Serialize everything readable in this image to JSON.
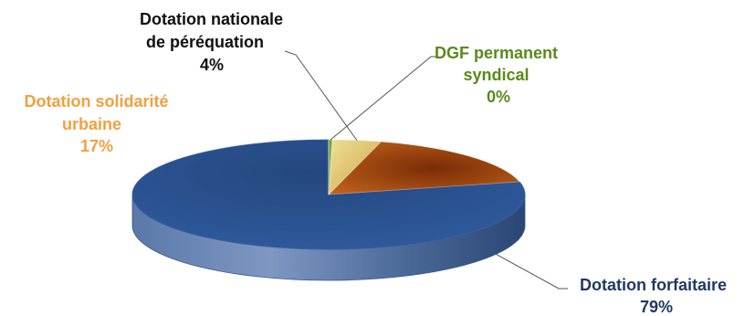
{
  "chart_data": {
    "type": "pie",
    "style": "3d",
    "slices": [
      {
        "key": "forfaitaire",
        "label_lines": [
          "Dotation forfaitaire"
        ],
        "pct_label": "79%",
        "value": 79,
        "color": "#2b4e8c",
        "text_color": "#1f3864"
      },
      {
        "key": "dsu",
        "label_lines": [
          "Dotation solidarité",
          "urbaine"
        ],
        "pct_label": "17%",
        "value": 17,
        "color": "#a24a10",
        "text_color": "#f0a040"
      },
      {
        "key": "dnp",
        "label_lines": [
          "Dotation nationale",
          "de péréquation"
        ],
        "pct_label": "4%",
        "value": 4,
        "color": "#e0c060",
        "text_color": "#111111"
      },
      {
        "key": "dgf",
        "label_lines": [
          "DGF permanent",
          "syndical"
        ],
        "pct_label": "0%",
        "value": 0.3,
        "color": "#6a9a20",
        "text_color": "#5a8a1a"
      }
    ]
  }
}
